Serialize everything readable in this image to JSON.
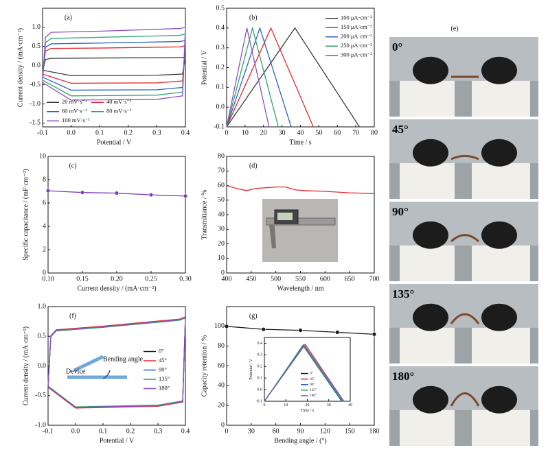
{
  "chart_data": [
    {
      "type": "line",
      "label": "(a)",
      "xlabel": "Potential / V",
      "ylabel": "Current density / (mA·cm⁻²)",
      "xlim": [
        -0.1,
        0.4
      ],
      "ylim": [
        -1.6,
        1.5
      ],
      "xticks": [
        -0.1,
        {
          "value": 0,
          "label": "0.0"
        },
        0.1,
        0.2,
        0.3,
        0.4
      ],
      "yticks": [
        -1.5,
        {
          "value": -1,
          "label": "-1.0"
        },
        -0.5,
        {
          "value": 0,
          "label": "0.0"
        },
        0.5,
        {
          "value": 1,
          "label": "1.0"
        }
      ],
      "legend": "lower left",
      "legend_columns": 2,
      "series": [
        {
          "name": "20 mV·s⁻¹",
          "color": "#3a3a3a",
          "x": [
            -0.1,
            -0.09,
            -0.07,
            0.1,
            0.38,
            0.4,
            0.39,
            0.3,
            0.0,
            -0.1
          ],
          "values": [
            -0.12,
            0.16,
            0.19,
            0.2,
            0.21,
            0.22,
            -0.22,
            -0.25,
            -0.26,
            -0.12
          ]
        },
        {
          "name": "40 mV·s⁻¹",
          "color": "#e8262b",
          "x": [
            -0.1,
            -0.09,
            -0.07,
            0.1,
            0.38,
            0.4,
            0.39,
            0.3,
            0.0,
            -0.1
          ],
          "values": [
            -0.22,
            0.38,
            0.45,
            0.46,
            0.49,
            0.52,
            -0.4,
            -0.45,
            -0.46,
            -0.22
          ]
        },
        {
          "name": "60 mV·s⁻¹",
          "color": "#2b60c8",
          "x": [
            -0.1,
            -0.09,
            -0.07,
            0.1,
            0.38,
            0.4,
            0.39,
            0.3,
            0.0,
            -0.1
          ],
          "values": [
            -0.3,
            0.48,
            0.57,
            0.59,
            0.63,
            0.66,
            -0.57,
            -0.63,
            -0.64,
            -0.3
          ]
        },
        {
          "name": "80 mV·s⁻¹",
          "color": "#2aa564",
          "x": [
            -0.1,
            -0.09,
            -0.07,
            0.1,
            0.38,
            0.4,
            0.39,
            0.3,
            0.0,
            -0.1
          ],
          "values": [
            -0.38,
            0.6,
            0.71,
            0.74,
            0.79,
            0.83,
            -0.69,
            -0.77,
            -0.79,
            -0.38
          ]
        },
        {
          "name": "100 mV·s⁻¹",
          "color": "#8e4fc2",
          "x": [
            -0.1,
            -0.09,
            -0.07,
            0.1,
            0.38,
            0.4,
            0.39,
            0.3,
            0.0,
            -0.1
          ],
          "values": [
            -0.44,
            0.74,
            0.87,
            0.9,
            0.97,
            1.0,
            -0.79,
            -0.88,
            -0.9,
            -0.44
          ]
        }
      ]
    },
    {
      "type": "line",
      "label": "(b)",
      "xlabel": "Time / s",
      "ylabel": "Potential / V",
      "xlim": [
        0,
        80
      ],
      "ylim": [
        -0.1,
        0.5
      ],
      "xticks": [
        0,
        10,
        20,
        30,
        40,
        50,
        60,
        70,
        80
      ],
      "yticks": [
        -0.1,
        {
          "value": 0,
          "label": "0.0"
        },
        0.1,
        0.2,
        0.3,
        0.4,
        0.5
      ],
      "legend": "upper right",
      "series": [
        {
          "name": "100 μA·cm⁻²",
          "color": "#3a3a3a",
          "x": [
            0,
            37,
            72
          ],
          "values": [
            -0.1,
            0.4,
            -0.1
          ]
        },
        {
          "name": "150 μA·cm⁻²",
          "color": "#e8262b",
          "x": [
            0,
            24,
            47
          ],
          "values": [
            -0.1,
            0.4,
            -0.1
          ]
        },
        {
          "name": "200 μA·cm⁻²",
          "color": "#2b60c8",
          "x": [
            0,
            18,
            35
          ],
          "values": [
            -0.1,
            0.4,
            -0.1
          ]
        },
        {
          "name": "250 μA·cm⁻²",
          "color": "#2aa564",
          "x": [
            0,
            14,
            28
          ],
          "values": [
            -0.1,
            0.4,
            -0.1
          ]
        },
        {
          "name": "300 μA·cm⁻²",
          "color": "#8e4fc2",
          "x": [
            0,
            11,
            23
          ],
          "values": [
            -0.1,
            0.4,
            -0.1
          ]
        }
      ]
    },
    {
      "type": "line",
      "label": "(c)",
      "xlabel": "Current density / (mA·cm⁻²)",
      "ylabel": "Specific capacitance / (mF·cm⁻²)",
      "xlim": [
        0.1,
        0.3
      ],
      "ylim": [
        0,
        10
      ],
      "xticks": [
        {
          "value": 0.1,
          "label": "0.10"
        },
        0.15,
        {
          "value": 0.2,
          "label": "0.20"
        },
        0.25,
        {
          "value": 0.3,
          "label": "0.30"
        }
      ],
      "yticks": [
        0,
        2,
        4,
        6,
        8,
        10
      ],
      "markers": true,
      "color": "#7a3fb5",
      "x": [
        0.1,
        0.15,
        0.2,
        0.25,
        0.3
      ],
      "values": [
        7.05,
        6.9,
        6.85,
        6.7,
        6.6
      ]
    },
    {
      "type": "line",
      "label": "(d)",
      "xlabel": "Wavelength / nm",
      "ylabel": "Transmittance / %",
      "xlim": [
        400,
        700
      ],
      "ylim": [
        0,
        80
      ],
      "xticks": [
        400,
        450,
        500,
        550,
        600,
        650,
        700
      ],
      "yticks": [
        0,
        10,
        20,
        30,
        40,
        50,
        60,
        70,
        80
      ],
      "color": "#e8262b",
      "x": [
        400,
        420,
        440,
        460,
        480,
        500,
        520,
        540,
        560,
        600,
        650,
        700
      ],
      "values": [
        60,
        58,
        56.5,
        58,
        58.5,
        59,
        59,
        57,
        56.5,
        56,
        55,
        54.5
      ]
    },
    {
      "type": "line",
      "label": "(f)",
      "xlabel": "Potential / V",
      "ylabel": "Current density / (mA·cm⁻²)",
      "xlim": [
        -0.1,
        0.4
      ],
      "ylim": [
        -1,
        1
      ],
      "xticks": [
        -0.1,
        {
          "value": 0,
          "label": "0.0"
        },
        0.1,
        0.2,
        0.3,
        0.4
      ],
      "yticks": [
        {
          "value": -1,
          "label": "-1.0"
        },
        -0.5,
        {
          "value": 0,
          "label": "0.0"
        },
        0.5,
        {
          "value": 1,
          "label": "1.0"
        }
      ],
      "legend": "center right",
      "annotations": [
        "Device",
        "Bending angle"
      ],
      "series": [
        {
          "name": "0°",
          "color": "#1a1a1a",
          "x": [
            -0.1,
            -0.09,
            -0.07,
            0.1,
            0.38,
            0.4,
            0.39,
            0.3,
            0.0,
            -0.1
          ],
          "values": [
            -0.35,
            0.5,
            0.6,
            0.66,
            0.78,
            0.82,
            -0.6,
            -0.67,
            -0.7,
            -0.35
          ]
        },
        {
          "name": "45°",
          "color": "#e8262b",
          "x": [
            -0.1,
            -0.09,
            -0.07,
            0.1,
            0.38,
            0.4,
            0.39,
            0.3,
            0.0,
            -0.1
          ],
          "values": [
            -0.36,
            0.51,
            0.61,
            0.67,
            0.79,
            0.83,
            -0.61,
            -0.68,
            -0.71,
            -0.36
          ]
        },
        {
          "name": "90°",
          "color": "#2b60c8",
          "x": [
            -0.1,
            -0.09,
            -0.07,
            0.1,
            0.38,
            0.4,
            0.39,
            0.3,
            0.0,
            -0.1
          ],
          "values": [
            -0.35,
            0.5,
            0.6,
            0.65,
            0.78,
            0.81,
            -0.6,
            -0.67,
            -0.7,
            -0.35
          ]
        },
        {
          "name": "135°",
          "color": "#2aa564",
          "x": [
            -0.1,
            -0.09,
            -0.07,
            0.1,
            0.38,
            0.4,
            0.39,
            0.3,
            0.0,
            -0.1
          ],
          "values": [
            -0.34,
            0.49,
            0.59,
            0.65,
            0.77,
            0.81,
            -0.59,
            -0.66,
            -0.69,
            -0.34
          ]
        },
        {
          "name": "180°",
          "color": "#8e4fc2",
          "x": [
            -0.1,
            -0.09,
            -0.07,
            0.1,
            0.38,
            0.4,
            0.39,
            0.3,
            0.0,
            -0.1
          ],
          "values": [
            -0.35,
            0.5,
            0.6,
            0.66,
            0.78,
            0.82,
            -0.6,
            -0.67,
            -0.7,
            -0.35
          ]
        }
      ]
    },
    {
      "type": "line",
      "label": "(g)",
      "xlabel": "Bending angle / (°)",
      "ylabel": "Capacity retention / %",
      "xlim": [
        0,
        180
      ],
      "ylim": [
        0,
        120
      ],
      "xticks": [
        0,
        30,
        60,
        90,
        120,
        150,
        180
      ],
      "yticks": [
        0,
        20,
        40,
        60,
        80,
        100
      ],
      "markers": true,
      "color": "#1a1a1a",
      "x": [
        0,
        45,
        90,
        135,
        180
      ],
      "values": [
        100,
        97,
        96,
        94,
        92
      ]
    },
    {
      "type": "line",
      "xlabel": "Time / s",
      "ylabel": "Potential / V",
      "xlim": [
        0,
        40
      ],
      "ylim": [
        -0.1,
        0.45
      ],
      "xticks": [
        0,
        10,
        20,
        30,
        40
      ],
      "yticks": [
        -0.1,
        {
          "value": 0,
          "label": "0.0"
        },
        0.1,
        0.2,
        0.3,
        0.4
      ],
      "legend": "lower center",
      "series": [
        {
          "name": "0°",
          "color": "#1a1a1a",
          "x": [
            0,
            19,
            37
          ],
          "values": [
            -0.1,
            0.39,
            -0.1
          ]
        },
        {
          "name": "45°",
          "color": "#e8262b",
          "x": [
            0,
            18.5,
            36.5
          ],
          "values": [
            -0.1,
            0.385,
            -0.1
          ]
        },
        {
          "name": "90°",
          "color": "#2b60c8",
          "x": [
            0,
            18,
            36
          ],
          "values": [
            -0.1,
            0.38,
            -0.1
          ]
        },
        {
          "name": "135°",
          "color": "#2aa564",
          "x": [
            0,
            18,
            36.5
          ],
          "values": [
            -0.1,
            0.385,
            -0.1
          ]
        },
        {
          "name": "180°",
          "color": "#8e4fc2",
          "x": [
            0,
            19,
            37
          ],
          "values": [
            -0.1,
            0.39,
            -0.1
          ]
        }
      ]
    }
  ],
  "photo_panel": {
    "label": "(e)",
    "captions": [
      "0°",
      "45°",
      "90°",
      "135°",
      "180°"
    ]
  }
}
